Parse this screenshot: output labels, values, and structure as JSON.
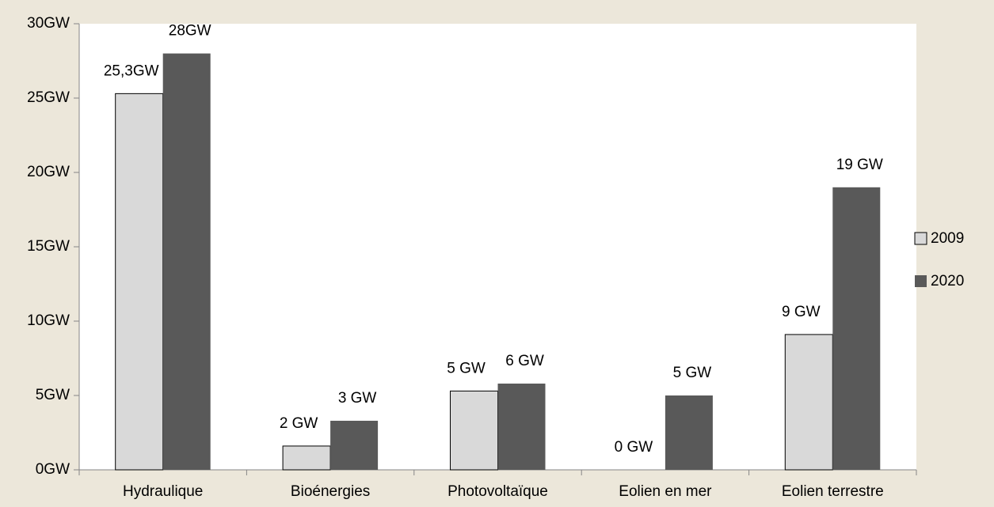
{
  "chart_data": {
    "type": "bar",
    "categories": [
      "Hydraulique",
      "Bioénergies",
      "Photovoltaïque",
      "Eolien en mer",
      "Eolien terrestre"
    ],
    "series": [
      {
        "name": "2009",
        "color": "#d9d9d9",
        "values": [
          25.3,
          1.6,
          5.3,
          0,
          9.1
        ],
        "value_labels": [
          "25,3GW",
          "2 GW",
          "5 GW",
          "0 GW",
          "9 GW"
        ]
      },
      {
        "name": "2020",
        "color": "#595959",
        "values": [
          28,
          3.3,
          5.8,
          5,
          19
        ],
        "value_labels": [
          "28GW",
          "3 GW",
          "6 GW",
          "5 GW",
          "19 GW"
        ]
      }
    ],
    "ylim": [
      0,
      30
    ],
    "yticks": [
      {
        "value": 0,
        "label": "0GW"
      },
      {
        "value": 5,
        "label": "5GW"
      },
      {
        "value": 10,
        "label": "10GW"
      },
      {
        "value": 15,
        "label": "15GW"
      },
      {
        "value": 20,
        "label": "20GW"
      },
      {
        "value": 25,
        "label": "25GW"
      },
      {
        "value": 30,
        "label": "30GW"
      }
    ],
    "legend": "right"
  }
}
